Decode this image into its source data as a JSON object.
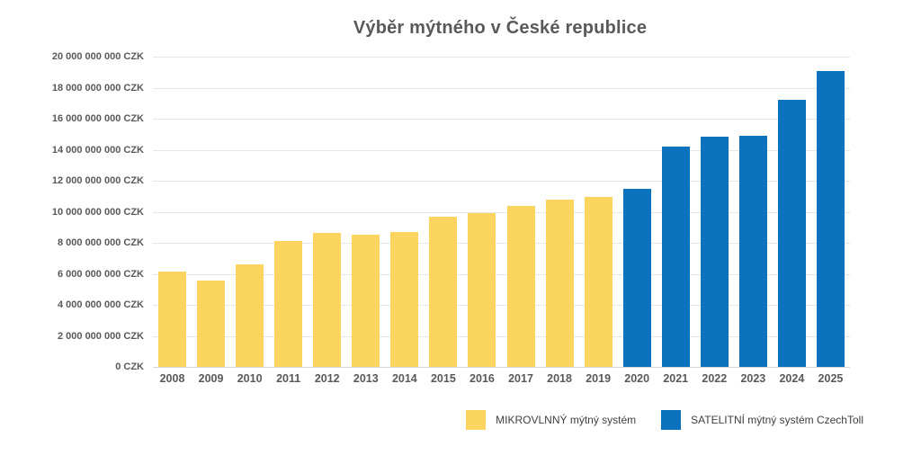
{
  "page": {
    "background": "#ffffff"
  },
  "chart_data": {
    "type": "bar",
    "title": "Výběr mýtného v České republice",
    "title_color": "#595959",
    "categories": [
      "2008",
      "2009",
      "2010",
      "2011",
      "2012",
      "2013",
      "2014",
      "2015",
      "2016",
      "2017",
      "2018",
      "2019",
      "2020",
      "2021",
      "2022",
      "2023",
      "2024",
      "2025"
    ],
    "series": [
      {
        "name": "MIKROVLNNÝ mýtný systém",
        "color": "#FCD560",
        "values": [
          6150000000,
          5550000000,
          6600000000,
          8100000000,
          8650000000,
          8500000000,
          8700000000,
          9700000000,
          9900000000,
          10400000000,
          10800000000,
          10950000000,
          null,
          null,
          null,
          null,
          null,
          null
        ]
      },
      {
        "name": "SATELITNÍ mýtný systém CzechToll",
        "color": "#0B72BE",
        "values": [
          null,
          null,
          null,
          null,
          null,
          null,
          null,
          null,
          null,
          null,
          null,
          null,
          11500000000,
          14200000000,
          14850000000,
          14900000000,
          17200000000,
          19100000000
        ]
      }
    ],
    "xlabel": "",
    "ylabel": "",
    "ylim": [
      0,
      20000000000
    ],
    "y_tick_step": 2000000000,
    "y_tick_labels": [
      "0 CZK",
      "2 000 000 000 CZK",
      "4 000 000 000 CZK",
      "6 000 000 000 CZK",
      "8 000 000 000 CZK",
      "10 000 000 000 CZK",
      "12 000 000 000 CZK",
      "14 000 000 000 CZK",
      "16 000 000 000 CZK",
      "18 000 000 000 CZK",
      "20 000 000 000 CZK"
    ],
    "grid": true,
    "gridline_color": "#e6e6e6",
    "legend_position": "bottom-right",
    "axis_text_color": "#595959",
    "legend_text_color": "#404040"
  }
}
